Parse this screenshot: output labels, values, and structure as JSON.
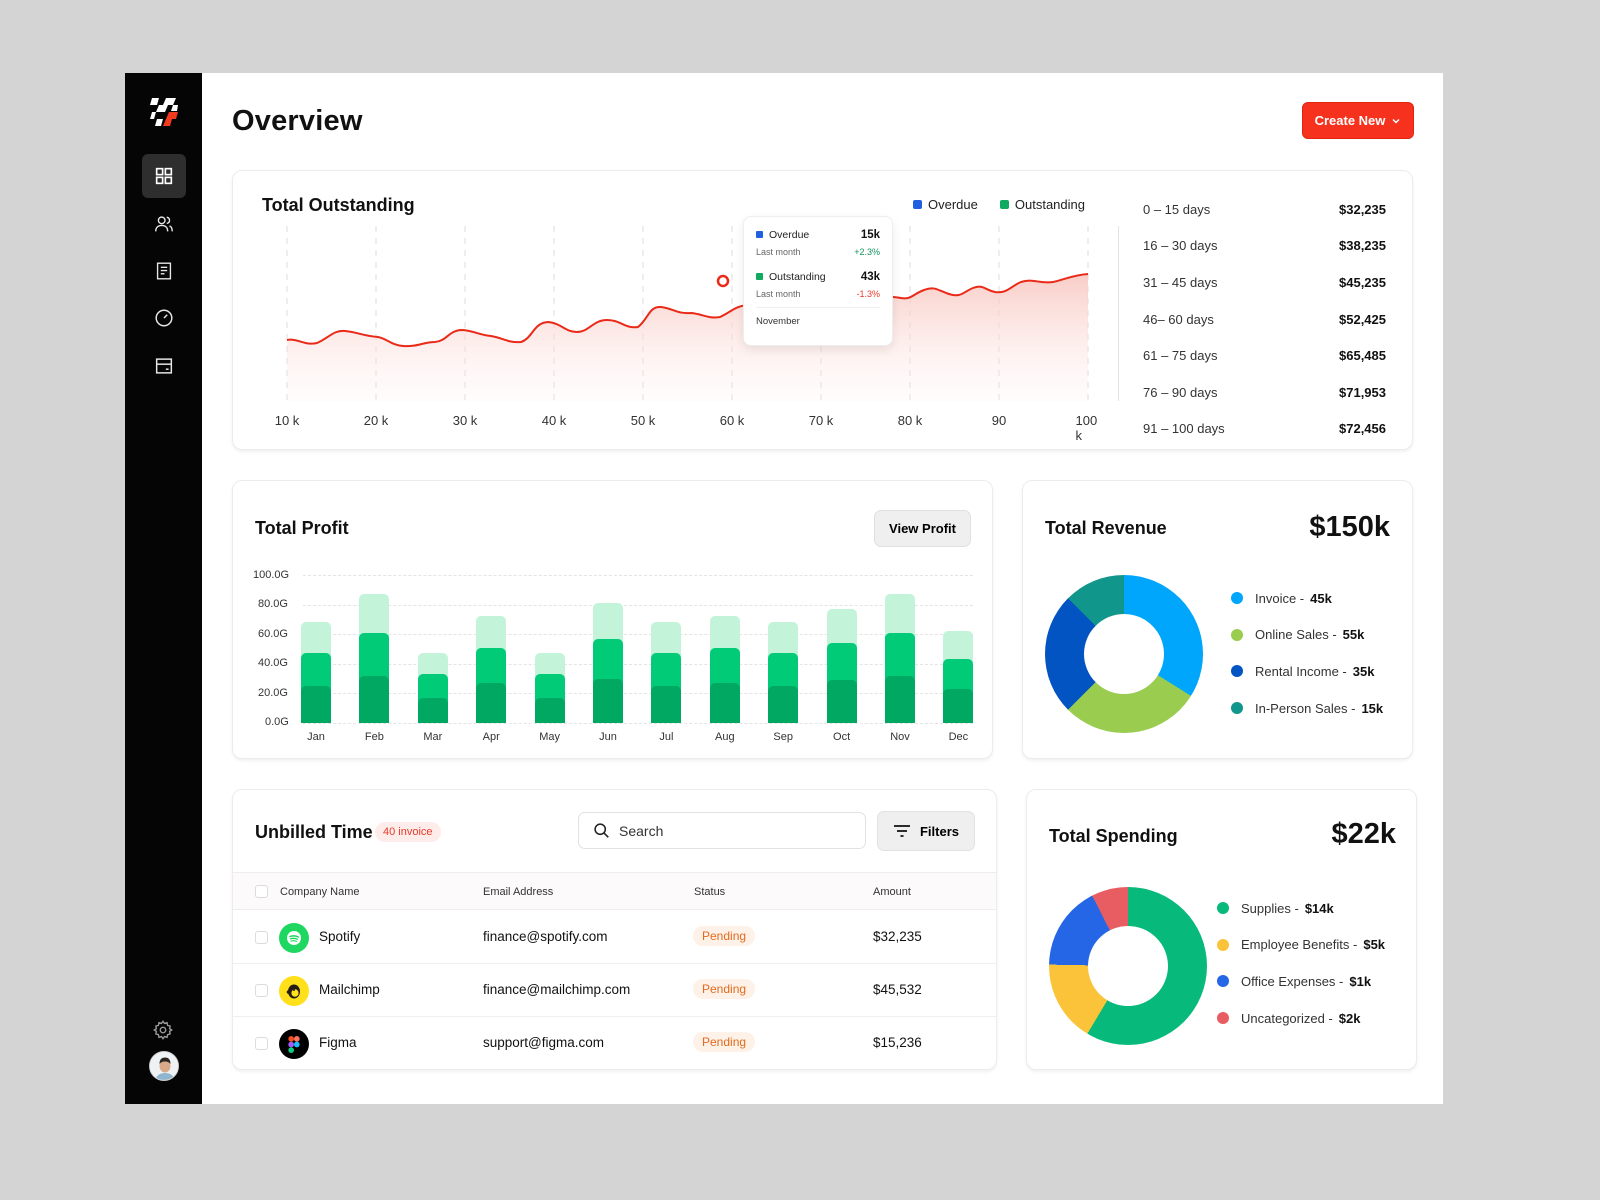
{
  "header": {
    "title": "Overview",
    "create_button": "Create New"
  },
  "sidebar": {
    "items": [
      {
        "name": "dashboard",
        "active": true
      },
      {
        "name": "users",
        "active": false
      },
      {
        "name": "documents",
        "active": false
      },
      {
        "name": "analytics",
        "active": false
      },
      {
        "name": "wallet",
        "active": false
      }
    ]
  },
  "outstanding": {
    "title": "Total Outstanding",
    "legend": [
      {
        "label": "Overdue",
        "color": "#1f5fe0"
      },
      {
        "label": "Outstanding",
        "color": "#0fa95f"
      }
    ],
    "x_labels": [
      "10 k",
      "20 k",
      "30 k",
      "40 k",
      "50 k",
      "60 k",
      "70 k",
      "80 k",
      "90",
      "100 k"
    ],
    "tooltip": {
      "overdue_label": "Overdue",
      "overdue_value": "15k",
      "overdue_sub": "Last month",
      "overdue_change": "+2.3%",
      "outstanding_label": "Outstanding",
      "outstanding_value": "43k",
      "outstanding_sub": "Last month",
      "outstanding_change": "-1.3%",
      "footer": "November"
    },
    "aging": [
      {
        "range": "0 – 15 days",
        "amount": "$32,235"
      },
      {
        "range": "16 – 30 days",
        "amount": "$38,235"
      },
      {
        "range": "31 – 45 days",
        "amount": "$45,235"
      },
      {
        "range": "46– 60 days",
        "amount": "$52,425"
      },
      {
        "range": "61 – 75 days",
        "amount": "$65,485"
      },
      {
        "range": "76 – 90 days",
        "amount": "$71,953"
      },
      {
        "range": "91 – 100 days",
        "amount": "$72,456"
      }
    ]
  },
  "profit": {
    "title": "Total Profit",
    "view_button": "View Profit",
    "y_labels": [
      "100.0G",
      "80.0G",
      "60.0G",
      "40.0G",
      "20.0G",
      "0.0G"
    ]
  },
  "revenue": {
    "title": "Total Revenue",
    "total": "$150k",
    "items": [
      {
        "label": "Invoice - ",
        "value": "45k",
        "color": "#00a6fb"
      },
      {
        "label": "Online Sales - ",
        "value": "55k",
        "color": "#99cc4f"
      },
      {
        "label": "Rental Income - ",
        "value": "35k",
        "color": "#0254c2"
      },
      {
        "label": "In-Person Sales - ",
        "value": "15k",
        "color": "#11968b"
      }
    ]
  },
  "unbilled": {
    "title": "Unbilled Time",
    "badge": "40 invoice",
    "search_placeholder": "Search",
    "filters_button": "Filters",
    "columns": [
      "Company Name",
      "Email Address",
      "Status",
      "Amount"
    ],
    "rows": [
      {
        "company": "Spotify",
        "email": "finance@spotify.com",
        "status": "Pending",
        "amount": "$32,235"
      },
      {
        "company": "Mailchimp",
        "email": "finance@mailchimp.com",
        "status": "Pending",
        "amount": "$45,532"
      },
      {
        "company": "Figma",
        "email": "support@figma.com",
        "status": "Pending",
        "amount": "$15,236"
      }
    ]
  },
  "spending": {
    "title": "Total Spending",
    "total": "$22k",
    "items": [
      {
        "label": "Supplies - ",
        "value": "$14k",
        "color": "#07b97a"
      },
      {
        "label": "Employee Benefits - ",
        "value": "$5k",
        "color": "#fbc33a"
      },
      {
        "label": "Office Expenses - ",
        "value": "$1k",
        "color": "#2466e6"
      },
      {
        "label": "Uncategorized - ",
        "value": "$2k",
        "color": "#e85d61"
      }
    ]
  },
  "chart_data": [
    {
      "type": "area",
      "title": "Total Outstanding",
      "x": [
        "10 k",
        "20 k",
        "30 k",
        "40 k",
        "50 k",
        "60 k",
        "70 k",
        "80 k",
        "90",
        "100 k"
      ],
      "series": [
        {
          "name": "Outstanding trend",
          "values": [
            35,
            33,
            37,
            45,
            52,
            66,
            58,
            62,
            60,
            72
          ]
        }
      ],
      "legend": [
        "Overdue",
        "Outstanding"
      ],
      "annotation": {
        "point": "60 k",
        "month": "November",
        "overdue": "15k",
        "overdue_change": "+2.3%",
        "outstanding": "43k",
        "outstanding_change": "-1.3%"
      },
      "grid": true
    },
    {
      "type": "bar",
      "title": "Total Profit",
      "categories": [
        "Jan",
        "Feb",
        "Mar",
        "Apr",
        "May",
        "Jun",
        "Jul",
        "Aug",
        "Sep",
        "Oct",
        "Nov",
        "Dec"
      ],
      "series": [
        {
          "name": "base",
          "values": [
            25,
            32,
            17,
            27,
            17,
            30,
            25,
            27,
            25,
            29,
            32,
            23
          ]
        },
        {
          "name": "middle",
          "values": [
            23,
            30,
            16,
            24,
            16,
            27,
            23,
            24,
            23,
            26,
            30,
            21
          ]
        },
        {
          "name": "top",
          "values": [
            20,
            25,
            14,
            21,
            14,
            24,
            20,
            21,
            20,
            22,
            25,
            18
          ]
        }
      ],
      "totals": [
        68,
        87,
        47,
        72,
        47,
        81,
        68,
        72,
        68,
        77,
        87,
        62
      ],
      "ylim": [
        0,
        100
      ],
      "y_ticks": [
        "0.0G",
        "20.0G",
        "40.0G",
        "60.0G",
        "80.0G",
        "100.0G"
      ],
      "stacked": true
    },
    {
      "type": "pie",
      "title": "Total Revenue",
      "categories": [
        "Invoice",
        "Online Sales",
        "Rental Income",
        "In-Person Sales"
      ],
      "values": [
        45,
        55,
        35,
        15
      ],
      "total": "$150k"
    },
    {
      "type": "pie",
      "title": "Total Spending",
      "categories": [
        "Supplies",
        "Employee Benefits",
        "Office Expenses",
        "Uncategorized"
      ],
      "values": [
        14,
        5,
        1,
        2
      ],
      "total": "$22k"
    }
  ]
}
